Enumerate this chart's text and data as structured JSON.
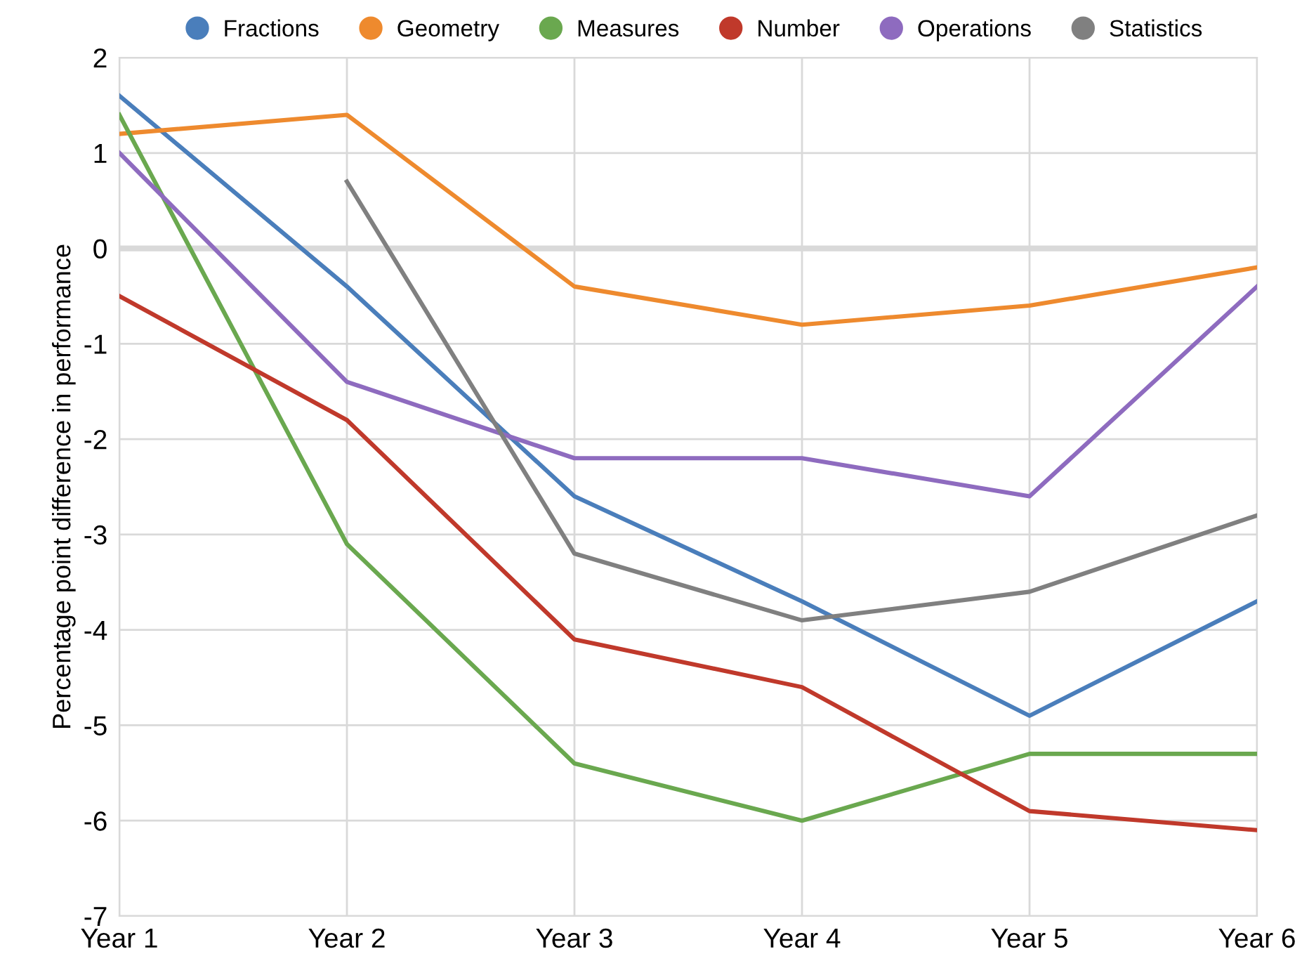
{
  "chart_data": {
    "type": "line",
    "ylabel": "Percentage point difference in performance",
    "categories": [
      "Year 1",
      "Year 2",
      "Year 3",
      "Year 4",
      "Year 5",
      "Year 6"
    ],
    "series": [
      {
        "name": "Fractions",
        "color": "#4a7ebb",
        "values": [
          1.6,
          -0.4,
          -2.6,
          -3.7,
          -4.9,
          -3.7
        ]
      },
      {
        "name": "Geometry",
        "color": "#ee8a2e",
        "values": [
          1.2,
          1.4,
          -0.4,
          -0.8,
          -0.6,
          -0.2
        ]
      },
      {
        "name": "Measures",
        "color": "#6aa84f",
        "values": [
          1.4,
          -3.1,
          -5.4,
          -6.0,
          -5.3,
          -5.3
        ]
      },
      {
        "name": "Number",
        "color": "#c0392b",
        "values": [
          -0.5,
          -1.8,
          -4.1,
          -4.6,
          -5.9,
          -6.1
        ]
      },
      {
        "name": "Operations",
        "color": "#8e6bbf",
        "values": [
          1.0,
          -1.4,
          -2.2,
          -2.2,
          -2.6,
          -0.4
        ]
      },
      {
        "name": "Statistics",
        "color": "#808080",
        "values": [
          null,
          0.7,
          -3.2,
          -3.9,
          -3.6,
          -2.8
        ]
      }
    ],
    "ylim": [
      -7,
      2
    ],
    "yticks": [
      -7,
      -6,
      -5,
      -4,
      -3,
      -2,
      -1,
      0,
      1,
      2
    ],
    "ref_lines": [
      {
        "axis": "y",
        "value": 0,
        "color": "#d9d9d9"
      }
    ],
    "grid": true,
    "legend": "top",
    "marker": "none",
    "line_style": "solid"
  }
}
